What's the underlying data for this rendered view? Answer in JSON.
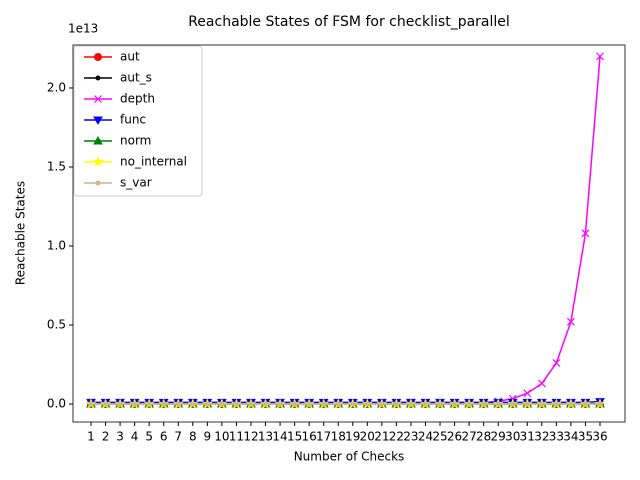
{
  "chart_data": {
    "type": "line",
    "title": "Reachable States of FSM for checklist_parallel",
    "x_label": "Number of Checks",
    "y_label": "Reachable States",
    "y_offset_label": "1e13",
    "categories": [
      "1",
      "2",
      "3",
      "4",
      "5",
      "6",
      "7",
      "8",
      "9",
      "10",
      "11",
      "12",
      "13",
      "14",
      "15",
      "16",
      "17",
      "18",
      "19",
      "20",
      "21",
      "22",
      "23",
      "24",
      "25",
      "26",
      "27",
      "28",
      "29",
      "30",
      "31",
      "32",
      "33",
      "34",
      "35",
      "36"
    ],
    "ylim": [
      -0.114,
      2.272
    ],
    "yticks": [
      {
        "value": 0,
        "label": "0.0"
      },
      0.5,
      {
        "value": 1,
        "label": "1.0"
      },
      1.5,
      {
        "value": 2,
        "label": "2.0"
      }
    ],
    "legend": "upper left",
    "grid": false,
    "series": [
      {
        "name": "aut",
        "color": "#ff0000",
        "marker": "circle",
        "values": [
          0,
          0,
          0,
          0,
          0,
          0,
          0,
          0,
          0,
          0,
          0,
          0,
          0,
          0,
          0,
          0,
          0,
          0,
          0,
          0,
          0,
          0,
          0,
          0,
          0,
          0,
          0,
          0,
          0,
          0,
          0,
          0,
          0,
          0,
          0,
          0
        ]
      },
      {
        "name": "aut_s",
        "color": "#000000",
        "marker": "point",
        "values": [
          0,
          0,
          0,
          0,
          0,
          0,
          0,
          0,
          0,
          0,
          0,
          0,
          0,
          0,
          0,
          0,
          0,
          0,
          0,
          0,
          0,
          0,
          0,
          0,
          0,
          0,
          0,
          0,
          0,
          0,
          0,
          0,
          0,
          0,
          0,
          0
        ]
      },
      {
        "name": "depth",
        "color": "#ff00ff",
        "marker": "x",
        "values": [
          0,
          0,
          0,
          0,
          0,
          0,
          0,
          0,
          0,
          0,
          0,
          0,
          0,
          0,
          0,
          0,
          0,
          0,
          0,
          0,
          0,
          0,
          0,
          0,
          0.001,
          0.002,
          0.004,
          0.008,
          0.017,
          0.034,
          0.068,
          0.13,
          0.26,
          0.52,
          1.08,
          2.2
        ]
      },
      {
        "name": "func",
        "color": "#0000ff",
        "marker": "triangle-down",
        "values": [
          0.01,
          0.01,
          0.01,
          0.01,
          0.01,
          0.01,
          0.01,
          0.01,
          0.01,
          0.01,
          0.01,
          0.01,
          0.01,
          0.01,
          0.01,
          0.01,
          0.01,
          0.01,
          0.01,
          0.01,
          0.01,
          0.01,
          0.01,
          0.01,
          0.01,
          0.01,
          0.01,
          0.01,
          0.01,
          0.01,
          0.01,
          0.01,
          0.01,
          0.01,
          0.01,
          0.015
        ]
      },
      {
        "name": "norm",
        "color": "#008000",
        "marker": "triangle-up",
        "values": [
          0,
          0,
          0,
          0,
          0,
          0,
          0,
          0,
          0,
          0,
          0,
          0,
          0,
          0,
          0,
          0,
          0,
          0,
          0,
          0,
          0,
          0,
          0,
          0,
          0,
          0,
          0,
          0,
          0,
          0,
          0,
          0,
          0,
          0,
          0,
          0
        ]
      },
      {
        "name": "no_internal",
        "color": "#ffff00",
        "marker": "star",
        "values": [
          0,
          0,
          0,
          0,
          0,
          0,
          0,
          0,
          0,
          0,
          0,
          0,
          0,
          0,
          0,
          0,
          0,
          0,
          0,
          0,
          0,
          0,
          0,
          0,
          0,
          0,
          0,
          0,
          0,
          0,
          0,
          0,
          0,
          0,
          0,
          0
        ]
      },
      {
        "name": "s_var",
        "color": "#d2b48c",
        "marker": "point",
        "values": [
          0,
          0,
          0,
          0,
          0,
          0,
          0,
          0,
          0,
          0,
          0,
          0,
          0,
          0,
          0,
          0,
          0,
          0,
          0,
          0,
          0,
          0,
          0,
          0,
          0,
          0,
          0,
          0,
          0,
          0,
          0,
          0,
          0,
          0,
          0,
          0
        ]
      }
    ]
  }
}
